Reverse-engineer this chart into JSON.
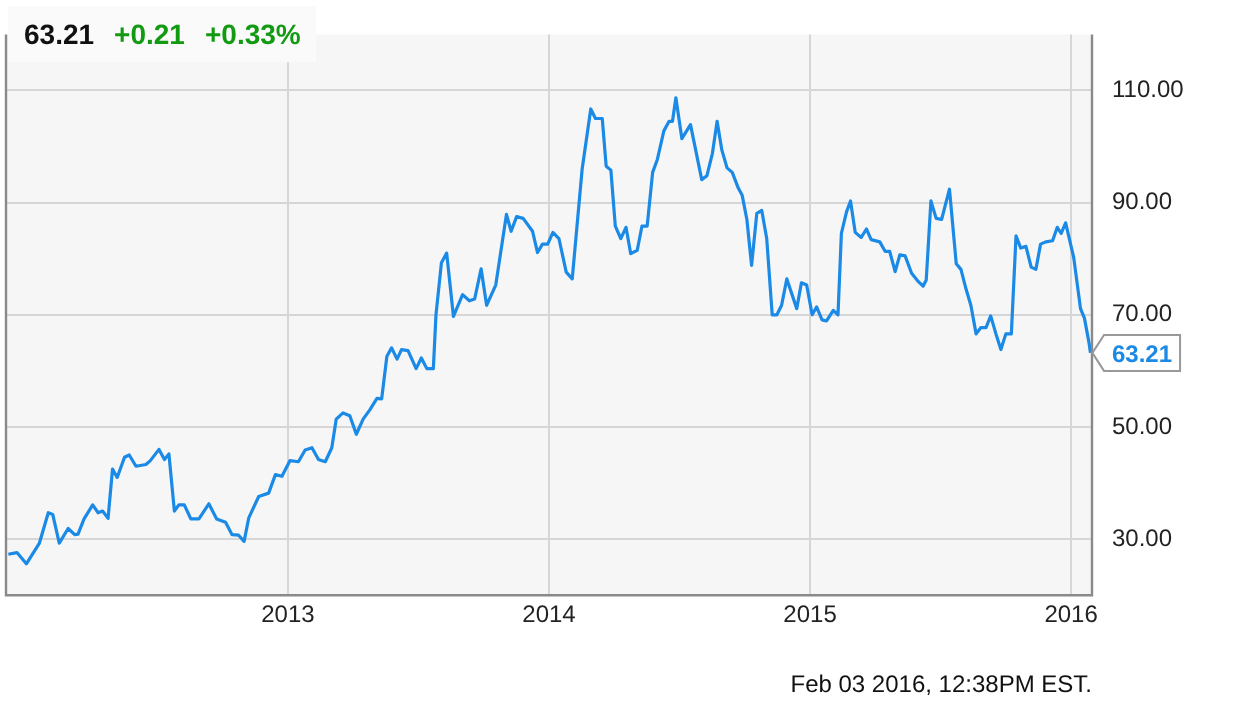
{
  "chart_data": {
    "type": "line",
    "annotations": [
      "63.21",
      "+0.21",
      "+0.33%",
      "Feb 03 2016, 12:38PM EST.",
      {
        "text": "63.21",
        "x": 2016.074,
        "y": 63.21
      }
    ],
    "x": [
      2011.929,
      2011.962,
      2011.998,
      2012.036,
      2012.048,
      2012.082,
      2012.099,
      2012.124,
      2012.158,
      2012.183,
      2012.196,
      2012.219,
      2012.252,
      2012.273,
      2012.29,
      2012.311,
      2012.328,
      2012.346,
      2012.374,
      2012.392,
      2012.418,
      2012.456,
      2012.473,
      2012.506,
      2012.527,
      2012.544,
      2012.565,
      2012.582,
      2012.603,
      2012.628,
      2012.659,
      2012.697,
      2012.727,
      2012.761,
      2012.786,
      2012.811,
      2012.832,
      2012.85,
      2012.888,
      2012.926,
      2012.952,
      2012.977,
      2013.008,
      2013.04,
      2013.066,
      2013.092,
      2013.117,
      2013.143,
      2013.168,
      2013.185,
      2013.211,
      2013.237,
      2013.262,
      2013.288,
      2013.313,
      2013.341,
      2013.359,
      2013.379,
      2013.397,
      2013.418,
      2013.435,
      2013.46,
      2013.491,
      2013.511,
      2013.532,
      2013.557,
      2013.567,
      2013.588,
      2013.608,
      2013.634,
      2013.669,
      2013.695,
      2013.715,
      2013.74,
      2013.761,
      2013.796,
      2013.837,
      2013.855,
      2013.876,
      2013.901,
      2013.937,
      2013.956,
      2013.975,
      2013.995,
      2014.015,
      2014.038,
      2014.066,
      2014.089,
      2014.127,
      2014.16,
      2014.178,
      2014.204,
      2014.219,
      2014.237,
      2014.254,
      2014.275,
      2014.295,
      2014.313,
      2014.338,
      2014.356,
      2014.376,
      2014.397,
      2014.415,
      2014.44,
      2014.46,
      2014.473,
      2014.486,
      2014.509,
      2014.542,
      2014.585,
      2014.605,
      2014.626,
      2014.644,
      2014.662,
      2014.682,
      2014.702,
      2014.725,
      2014.74,
      2014.758,
      2014.776,
      2014.796,
      2014.815,
      2014.834,
      2014.855,
      2014.873,
      2014.891,
      2014.911,
      2014.949,
      2014.967,
      2014.987,
      2015.008,
      2015.025,
      2015.046,
      2015.063,
      2015.089,
      2015.107,
      2015.12,
      2015.14,
      2015.155,
      2015.173,
      2015.196,
      2015.216,
      2015.234,
      2015.267,
      2015.288,
      2015.305,
      2015.326,
      2015.344,
      2015.364,
      2015.389,
      2015.415,
      2015.433,
      2015.445,
      2015.463,
      2015.483,
      2015.504,
      2015.534,
      2015.56,
      2015.578,
      2015.598,
      2015.616,
      2015.636,
      2015.654,
      2015.674,
      2015.692,
      2015.712,
      2015.731,
      2015.75,
      2015.771,
      2015.789,
      2015.807,
      2015.827,
      2015.847,
      2015.865,
      2015.883,
      2015.903,
      2015.929,
      2015.947,
      2015.962,
      2015.979,
      2016.01,
      2016.036,
      2016.051,
      2016.069,
      2016.074
    ],
    "series": [
      {
        "color": "#1a8ae6",
        "values": [
          27.3,
          27.6,
          25.6,
          28.4,
          29.3,
          34.7,
          34.4,
          29.3,
          31.9,
          30.8,
          30.9,
          33.6,
          36.1,
          34.7,
          35,
          33.7,
          42.5,
          41,
          44.6,
          45,
          43,
          43.3,
          44,
          46,
          44.2,
          45.2,
          35,
          36.1,
          36.1,
          33.6,
          33.6,
          36.3,
          33.6,
          33,
          30.8,
          30.7,
          29.6,
          33.8,
          37.6,
          38.2,
          41.5,
          41.2,
          44,
          43.8,
          45.9,
          46.3,
          44.2,
          43.8,
          46.3,
          51.4,
          52.5,
          52,
          48.7,
          51.4,
          53,
          55.1,
          55,
          62.6,
          64.1,
          62.1,
          63.8,
          63.6,
          60.4,
          62.3,
          60.4,
          60.4,
          70,
          79.3,
          81,
          69.7,
          73.6,
          72.5,
          72.8,
          78.2,
          71.7,
          75.3,
          87.9,
          84.9,
          87.5,
          87.2,
          84.9,
          81.1,
          82.6,
          82.6,
          84.7,
          83.6,
          77.6,
          76.4,
          96,
          106.7,
          105,
          105,
          96.5,
          95.8,
          85.8,
          83.6,
          85.6,
          80.9,
          81.5,
          85.8,
          85.8,
          95.4,
          97.7,
          102.8,
          104.5,
          104.5,
          108.7,
          101.4,
          103.9,
          94.1,
          94.8,
          98.8,
          104.5,
          99.4,
          96.2,
          95.4,
          92.6,
          91.3,
          87,
          78.8,
          88.1,
          88.6,
          83.6,
          70,
          70,
          71.7,
          76.4,
          71.1,
          75.7,
          75.3,
          70,
          71.4,
          69.1,
          68.9,
          70.8,
          70,
          84.5,
          88.4,
          90.3,
          84.7,
          83.8,
          85.3,
          83.4,
          83,
          81.3,
          81.3,
          77.7,
          80.7,
          80.5,
          77.4,
          75.9,
          75.1,
          76.2,
          90.3,
          87.2,
          87,
          92.4,
          79.1,
          78.1,
          74.5,
          71.7,
          66.6,
          67.7,
          67.7,
          69.8,
          66.6,
          63.8,
          66.6,
          66.6,
          84.1,
          81.9,
          82.2,
          78.5,
          78.1,
          82.6,
          83,
          83.2,
          85.6,
          84.5,
          86.4,
          80.2,
          71.1,
          69.4,
          64.9,
          63.21
        ]
      }
    ],
    "xlim": [
      2011.92,
      2016.08
    ],
    "xticks": [
      2013,
      2014,
      2015,
      2016
    ],
    "ylim": [
      20,
      120
    ],
    "yticks": [
      {
        "value": 30,
        "label": "30.00"
      },
      {
        "value": 50,
        "label": "50.00"
      },
      {
        "value": 70,
        "label": "70.00"
      },
      {
        "value": 90,
        "label": "90.00"
      },
      {
        "value": 110,
        "label": "110.00"
      }
    ],
    "grid": true,
    "legend": false,
    "marker": "none",
    "line_style": "solid"
  }
}
